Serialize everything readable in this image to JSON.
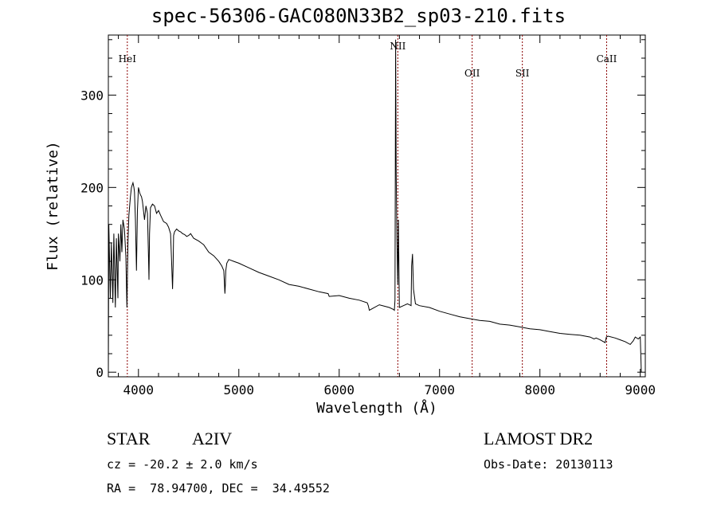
{
  "chart_data": {
    "type": "line",
    "title": "spec-56306-GAC080N33B2_sp03-210.fits",
    "xlabel": "Wavelength (Å)",
    "ylabel": "Flux (relative)",
    "xlim": [
      3700,
      9050
    ],
    "ylim": [
      -5,
      365
    ],
    "x_ticks": [
      4000,
      5000,
      6000,
      7000,
      8000,
      9000
    ],
    "y_ticks": [
      0,
      100,
      200,
      300
    ],
    "grid": false,
    "line_color": "#000000",
    "marker_color": "#8b0000",
    "lines": [
      {
        "label": "HeI",
        "x": 3889
      },
      {
        "label": "NII",
        "x": 6584
      },
      {
        "label": "OII",
        "x": 7325
      },
      {
        "label": "SII",
        "x": 7825
      },
      {
        "label": "CaII",
        "x": 8665
      }
    ],
    "series": [
      {
        "x": [
          3700,
          3705,
          3720,
          3730,
          3745,
          3755,
          3770,
          3780,
          3795,
          3800,
          3815,
          3825,
          3835,
          3845,
          3860,
          3875,
          3885,
          3895,
          3905,
          3920,
          3930,
          3945,
          3955,
          3960,
          3970,
          3980,
          3990,
          4000,
          4010,
          4020,
          4030,
          4040,
          4060,
          4075,
          4090,
          4100,
          4105,
          4110,
          4120,
          4140,
          4160,
          4180,
          4200,
          4220,
          4250,
          4280,
          4300,
          4320,
          4330,
          4340,
          4345,
          4350,
          4360,
          4380,
          4400,
          4420,
          4440,
          4460,
          4480,
          4500,
          4520,
          4550,
          4600,
          4650,
          4700,
          4750,
          4800,
          4830,
          4850,
          4855,
          4861,
          4866,
          4870,
          4880,
          4900,
          4950,
          5000,
          5100,
          5200,
          5300,
          5400,
          5500,
          5600,
          5700,
          5800,
          5890,
          5900,
          6000,
          6100,
          6200,
          6280,
          6290,
          6300,
          6400,
          6500,
          6540,
          6550,
          6556,
          6562,
          6568,
          6575,
          6584,
          6590,
          6600,
          6640,
          6680,
          6700,
          6716,
          6722,
          6731,
          6740,
          6760,
          6800,
          6900,
          7000,
          7100,
          7200,
          7300,
          7400,
          7500,
          7600,
          7700,
          7800,
          7900,
          8000,
          8100,
          8200,
          8300,
          8400,
          8500,
          8540,
          8560,
          8600,
          8650,
          8662,
          8680,
          8750,
          8800,
          8850,
          8900,
          8930,
          8950,
          8980,
          9000,
          9010
        ],
        "y": [
          0,
          160,
          80,
          140,
          75,
          150,
          70,
          145,
          80,
          150,
          120,
          160,
          130,
          165,
          155,
          125,
          70,
          140,
          170,
          190,
          200,
          205,
          200,
          195,
          165,
          110,
          175,
          200,
          195,
          192,
          190,
          185,
          165,
          180,
          172,
          125,
          100,
          150,
          178,
          182,
          180,
          172,
          175,
          170,
          163,
          161,
          157,
          150,
          120,
          90,
          115,
          148,
          152,
          155,
          153,
          152,
          150,
          149,
          147,
          148,
          150,
          145,
          142,
          138,
          130,
          126,
          120,
          115,
          110,
          100,
          85,
          95,
          110,
          118,
          122,
          120,
          118,
          113,
          108,
          104,
          100,
          95,
          93,
          90,
          87,
          85,
          82,
          83,
          80,
          78,
          75,
          72,
          67,
          73,
          70,
          68,
          67,
          78,
          360,
          215,
          145,
          95,
          165,
          70,
          72,
          74,
          73,
          72,
          115,
          128,
          90,
          74,
          72,
          70,
          66,
          63,
          60,
          58,
          56,
          55,
          52,
          51,
          49,
          47,
          46,
          44,
          42,
          41,
          40,
          38,
          36,
          37,
          35,
          32,
          38,
          39,
          37,
          35,
          33,
          30,
          34,
          38,
          36,
          38,
          0
        ]
      }
    ]
  },
  "info": {
    "object_type": "STAR",
    "subclass": "A2IV",
    "survey": "LAMOST DR2",
    "cz": "cz = -20.2 ± 2.0 km/s",
    "obs_date": "Obs-Date: 20130113",
    "coords": "RA =  78.94700, DEC =  34.49552"
  }
}
